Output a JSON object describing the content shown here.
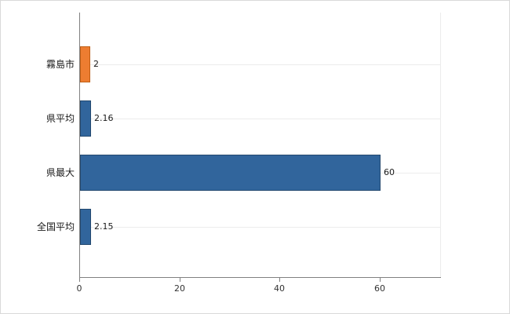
{
  "chart_data": {
    "type": "bar",
    "orientation": "horizontal",
    "title": "",
    "categories": [
      "霧島市",
      "県平均",
      "県最大",
      "全国平均"
    ],
    "values": [
      2,
      2.16,
      60,
      2.15
    ],
    "value_labels": [
      "2",
      "2.16",
      "60",
      "2.15"
    ],
    "series": [
      {
        "name": "value",
        "values": [
          2,
          2.16,
          60,
          2.15
        ]
      }
    ],
    "bar_fill_colors": [
      "#ed7d31",
      "#31659c",
      "#31659c",
      "#31659c"
    ],
    "bar_border_colors": [
      "#c express05f16",
      "#24496f",
      "#24496f",
      "#24496f"
    ],
    "xlim": [
      0,
      72
    ],
    "xticks": [
      0,
      20,
      40,
      60
    ],
    "xtick_labels": [
      "0",
      "20",
      "40",
      "60"
    ],
    "grid": "light horizontal gridline per category row",
    "legend": "none"
  },
  "colors": {
    "accent_orange": "#ed7d31",
    "accent_blue": "#31659c",
    "axis": "#808080",
    "gridline": "#ececec",
    "background": "#ffffff"
  }
}
